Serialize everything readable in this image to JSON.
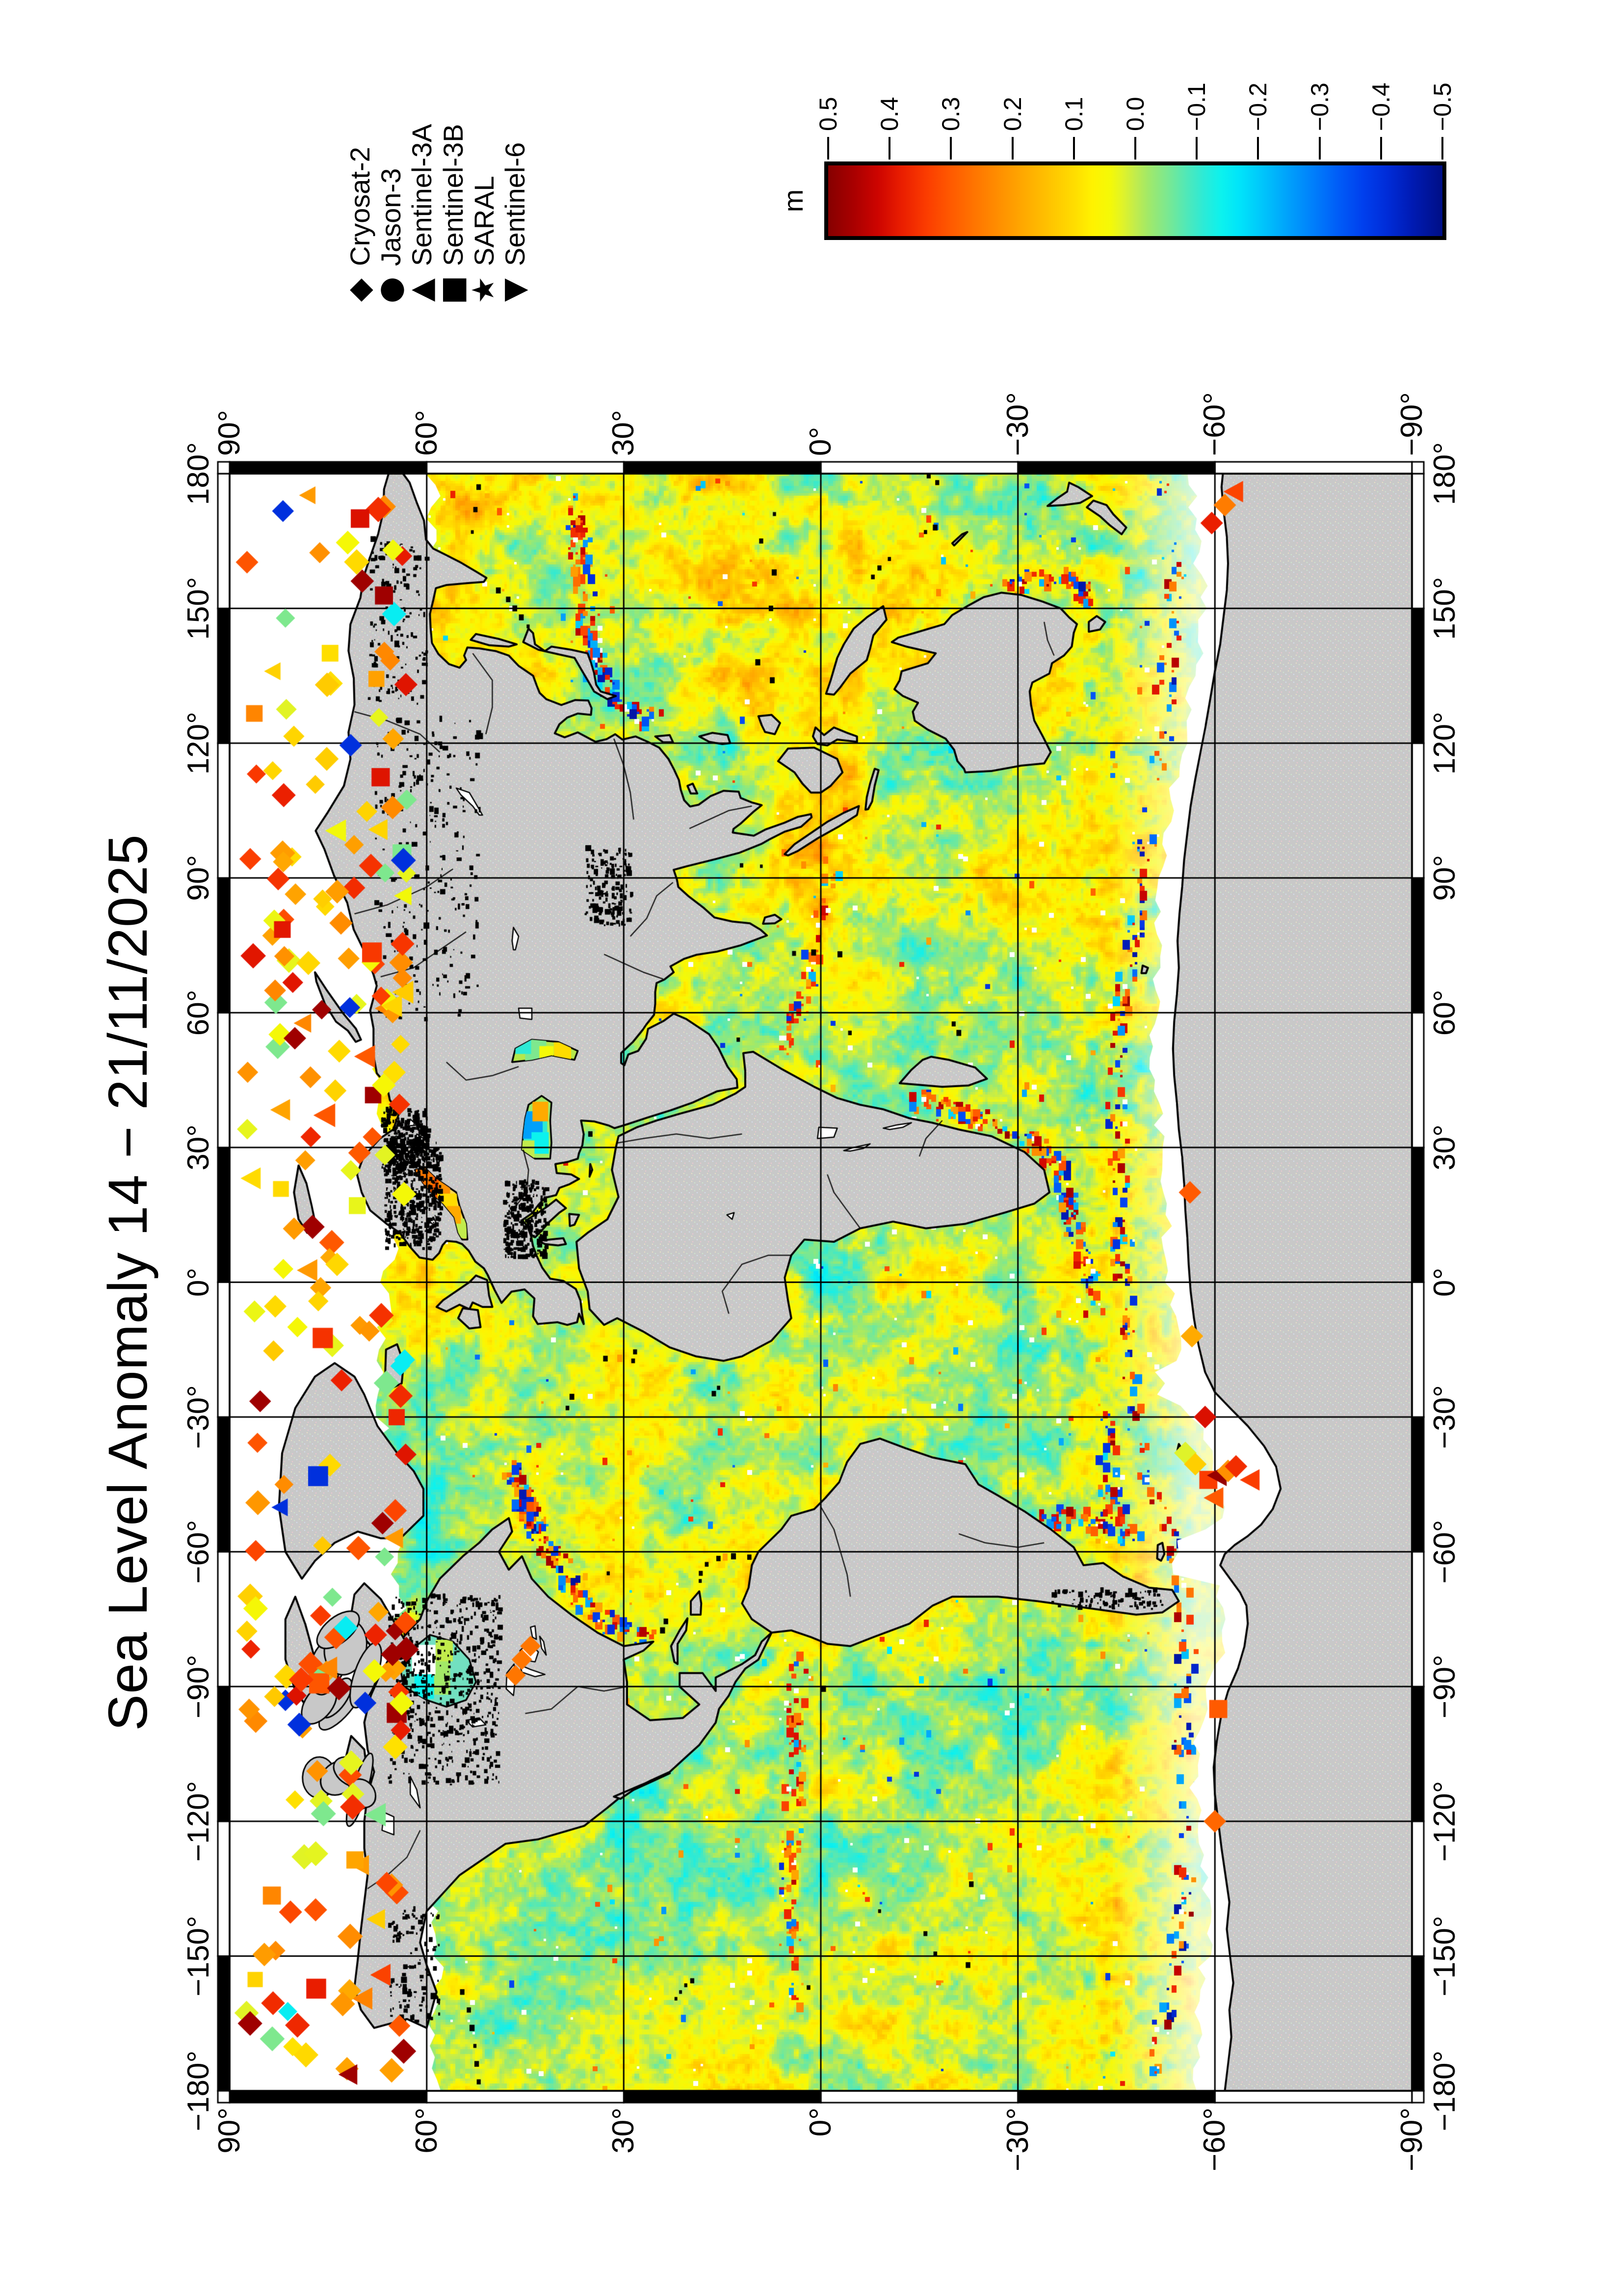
{
  "title": "Sea Level Anomaly 14 − 21/11/2025",
  "legend": {
    "entries": [
      {
        "symbol": "diamond-icon",
        "glyph": "◆",
        "label": "Cryosat-2"
      },
      {
        "symbol": "circle-icon",
        "glyph": "●",
        "label": "Jason-3"
      },
      {
        "symbol": "triangle-up-icon",
        "glyph": "▲",
        "label": "Sentinel-3A"
      },
      {
        "symbol": "square-icon",
        "glyph": "■",
        "label": "Sentinel-3B"
      },
      {
        "symbol": "star-icon",
        "glyph": "★",
        "label": "SARAL"
      },
      {
        "symbol": "triangle-down-icon",
        "glyph": "▼",
        "label": "Sentinel-6"
      }
    ]
  },
  "colorbar": {
    "unit": "m",
    "min": -0.5,
    "max": 0.5,
    "tick_labels": [
      "0.5",
      "0.4",
      "0.3",
      "0.2",
      "0.1",
      "0.0",
      "−0.1",
      "−0.2",
      "−0.3",
      "−0.4",
      "−0.5"
    ],
    "stops": [
      {
        "v": 0.5,
        "c": "#860000"
      },
      {
        "v": 0.46,
        "c": "#a80000"
      },
      {
        "v": 0.42,
        "c": "#cc0400"
      },
      {
        "v": 0.38,
        "c": "#ea1e00"
      },
      {
        "v": 0.34,
        "c": "#fb3c00"
      },
      {
        "v": 0.3,
        "c": "#ff5a00"
      },
      {
        "v": 0.26,
        "c": "#ff7600"
      },
      {
        "v": 0.22,
        "c": "#ff9000"
      },
      {
        "v": 0.18,
        "c": "#ffaa00"
      },
      {
        "v": 0.14,
        "c": "#ffc300"
      },
      {
        "v": 0.1,
        "c": "#ffdc00"
      },
      {
        "v": 0.07,
        "c": "#fff200"
      },
      {
        "v": 0.04,
        "c": "#f4f908"
      },
      {
        "v": 0.02,
        "c": "#dff32a"
      },
      {
        "v": 0.0,
        "c": "#c2ec4c"
      },
      {
        "v": -0.02,
        "c": "#a3e967"
      },
      {
        "v": -0.05,
        "c": "#7ee88e"
      },
      {
        "v": -0.08,
        "c": "#55e8b4"
      },
      {
        "v": -0.11,
        "c": "#2eead5"
      },
      {
        "v": -0.14,
        "c": "#0cf2ee"
      },
      {
        "v": -0.17,
        "c": "#00e4fa"
      },
      {
        "v": -0.21,
        "c": "#00c3fb"
      },
      {
        "v": -0.25,
        "c": "#00a0fb"
      },
      {
        "v": -0.29,
        "c": "#007ffb"
      },
      {
        "v": -0.33,
        "c": "#005df8"
      },
      {
        "v": -0.37,
        "c": "#0040ee"
      },
      {
        "v": -0.41,
        "c": "#002cd8"
      },
      {
        "v": -0.45,
        "c": "#001bb4"
      },
      {
        "v": -0.5,
        "c": "#000f86"
      }
    ]
  },
  "map": {
    "lon_min": -180,
    "lon_max": 180,
    "lat_min": -90,
    "lat_max": 90,
    "grid_deg": 30,
    "lon_tick_labels": [
      "−180°",
      "−150°",
      "−120°",
      "−90°",
      "−60°",
      "−30°",
      "0°",
      "30°",
      "60°",
      "90°",
      "120°",
      "150°",
      "180°"
    ],
    "lat_tick_labels": [
      "90°",
      "60°",
      "30°",
      "0°",
      "−30°",
      "−60°",
      "−90°"
    ],
    "land_color": "#c8c8c8",
    "coast_color": "#000000",
    "nodata_color": "#ffffff",
    "grid_color": "#000000",
    "frame_colors": [
      "#000000",
      "#ffffff"
    ]
  }
}
